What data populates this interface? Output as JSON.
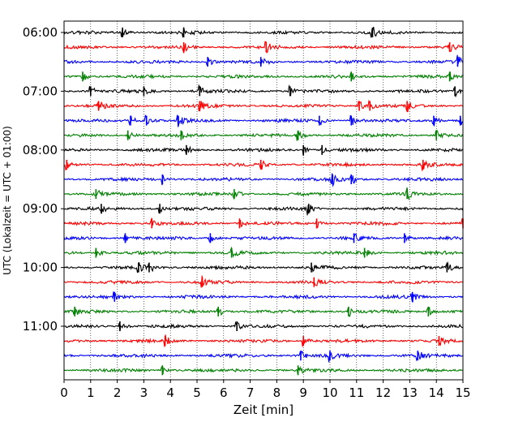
{
  "chart_data": {
    "type": "line",
    "title": "",
    "xlabel": "Zeit  [min]",
    "ylabel": "UTC (Lokalzeit = UTC + 01:00)",
    "xlim": [
      0,
      15
    ],
    "x_ticks": [
      0,
      1,
      2,
      3,
      4,
      5,
      6,
      7,
      8,
      9,
      10,
      11,
      12,
      13,
      14,
      15
    ],
    "x_grid": true,
    "y_tick_labels": [
      "06:00",
      "07:00",
      "08:00",
      "09:00",
      "10:00",
      "11:00"
    ],
    "y_tick_trace_index": [
      0,
      4,
      8,
      12,
      16,
      20
    ],
    "trace_colors": [
      "#000000",
      "#ff0000",
      "#0000ff",
      "#008000"
    ],
    "traces": [
      {
        "start": "06:00",
        "spikes": [
          2.2,
          4.5,
          11.6
        ]
      },
      {
        "start": "06:15",
        "spikes": [
          4.5,
          7.6,
          14.5
        ]
      },
      {
        "start": "06:30",
        "spikes": [
          5.4,
          7.4,
          14.8
        ]
      },
      {
        "start": "06:45",
        "spikes": [
          0.7,
          10.8,
          14.5
        ]
      },
      {
        "start": "07:00",
        "spikes": [
          1.0,
          3.0,
          5.1,
          8.5,
          14.7
        ]
      },
      {
        "start": "07:15",
        "spikes": [
          1.3,
          5.1,
          11.1,
          11.5,
          12.9
        ]
      },
      {
        "start": "07:30",
        "spikes": [
          2.5,
          3.1,
          4.3,
          9.6,
          10.8,
          13.9,
          14.9
        ]
      },
      {
        "start": "07:45",
        "spikes": [
          2.4,
          4.4,
          8.8,
          14.0
        ]
      },
      {
        "start": "08:00",
        "spikes": [
          4.6,
          9.0,
          9.7
        ]
      },
      {
        "start": "08:15",
        "spikes": [
          0.1,
          7.4,
          13.5
        ]
      },
      {
        "start": "08:30",
        "spikes": [
          3.7,
          10.1,
          10.8
        ]
      },
      {
        "start": "08:45",
        "spikes": [
          1.2,
          6.4,
          12.9
        ]
      },
      {
        "start": "09:00",
        "spikes": [
          1.4,
          3.6,
          9.2
        ]
      },
      {
        "start": "09:15",
        "spikes": [
          3.3,
          6.6,
          9.5,
          15.0
        ]
      },
      {
        "start": "09:30",
        "spikes": [
          2.3,
          5.5,
          10.9,
          12.8
        ]
      },
      {
        "start": "09:45",
        "spikes": [
          1.2,
          6.3,
          11.3
        ]
      },
      {
        "start": "10:00",
        "spikes": [
          2.8,
          3.2,
          9.3,
          14.4
        ]
      },
      {
        "start": "10:15",
        "spikes": [
          5.2,
          9.4
        ]
      },
      {
        "start": "10:30",
        "spikes": [
          1.9,
          13.1
        ]
      },
      {
        "start": "10:45",
        "spikes": [
          0.4,
          5.8,
          10.7,
          13.7
        ]
      },
      {
        "start": "11:00",
        "spikes": [
          2.1,
          6.5
        ]
      },
      {
        "start": "11:15",
        "spikes": [
          3.8,
          9.0,
          14.1
        ]
      },
      {
        "start": "11:30",
        "spikes": [
          8.9,
          10.0,
          13.3
        ]
      },
      {
        "start": "11:45",
        "spikes": [
          3.7,
          8.8
        ]
      }
    ]
  }
}
